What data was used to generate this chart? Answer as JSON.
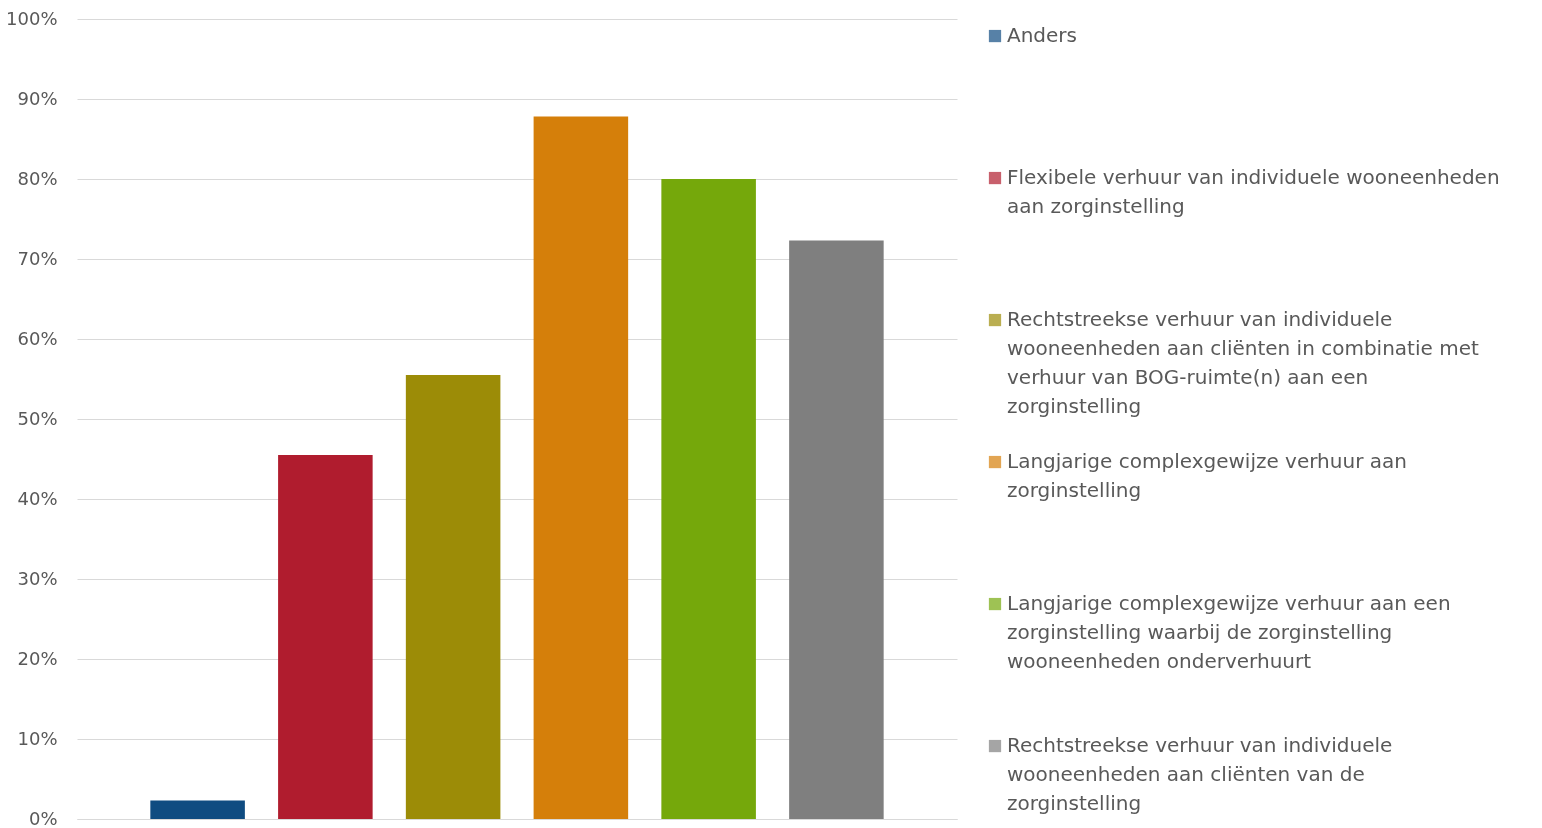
{
  "chart_data": {
    "type": "bar",
    "categories": [
      null
    ],
    "series": [
      {
        "name": "Anders",
        "color": "#0f4c81",
        "values": [
          2.3
        ]
      },
      {
        "name": "Flexibele verhuur van individuele wooneenheden aan zorginstelling",
        "color": "#b01c2e",
        "values": [
          45.5
        ]
      },
      {
        "name": "Rechtstreekse verhuur van individuele wooneenheden aan cliënten in combinatie met verhuur van BOG-ruimte(n) aan een zorginstelling",
        "color": "#9c8c07",
        "values": [
          55.5
        ]
      },
      {
        "name": "Langjarige complexgewijze verhuur aan zorginstelling",
        "color": "#d57f0a",
        "values": [
          87.8
        ]
      },
      {
        "name": "Langjarige complexgewijze verhuur aan een zorginstelling waarbij de zorginstelling wooneenheden onderverhuurt",
        "color": "#75a80b",
        "values": [
          80
        ]
      },
      {
        "name": "Rechtstreekse verhuur van individuele wooneenheden aan cliënten van de zorginstelling",
        "color": "#7f7f7f",
        "values": [
          72.3
        ]
      }
    ],
    "ylim": [
      0,
      100
    ],
    "yticks": [
      {
        "value": 0,
        "label": "0%"
      },
      {
        "value": 10,
        "label": "10%"
      },
      {
        "value": 20,
        "label": "20%"
      },
      {
        "value": 30,
        "label": "30%"
      },
      {
        "value": 40,
        "label": "40%"
      },
      {
        "value": 50,
        "label": "50%"
      },
      {
        "value": 60,
        "label": "60%"
      },
      {
        "value": 70,
        "label": "70%"
      },
      {
        "value": 80,
        "label": "80%"
      },
      {
        "value": 90,
        "label": "90%"
      },
      {
        "value": 100,
        "label": "100%"
      }
    ],
    "grid": "y",
    "legend": "right"
  }
}
